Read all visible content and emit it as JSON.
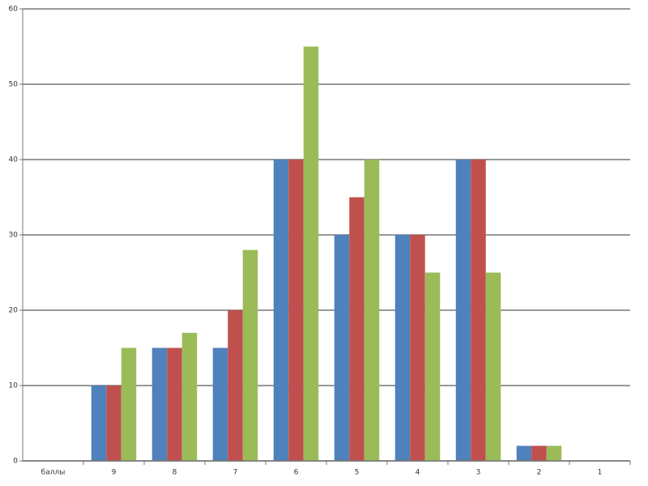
{
  "chart_data": {
    "type": "bar",
    "categories": [
      "баллы",
      "9",
      "8",
      "7",
      "6",
      "5",
      "4",
      "3",
      "2",
      "1"
    ],
    "series": [
      {
        "color": "#4f81bd",
        "values": [
          null,
          10,
          15,
          15,
          40,
          30,
          30,
          40,
          2,
          0
        ]
      },
      {
        "color": "#c0504d",
        "values": [
          null,
          10,
          15,
          20,
          40,
          35,
          30,
          40,
          2,
          0
        ]
      },
      {
        "color": "#9bbb59",
        "values": [
          null,
          15,
          17,
          28,
          55,
          40,
          25,
          25,
          2,
          0
        ]
      }
    ],
    "ylim": [
      0,
      60
    ],
    "yticks": [
      0,
      10,
      20,
      30,
      40,
      50,
      60
    ],
    "grid": true
  }
}
